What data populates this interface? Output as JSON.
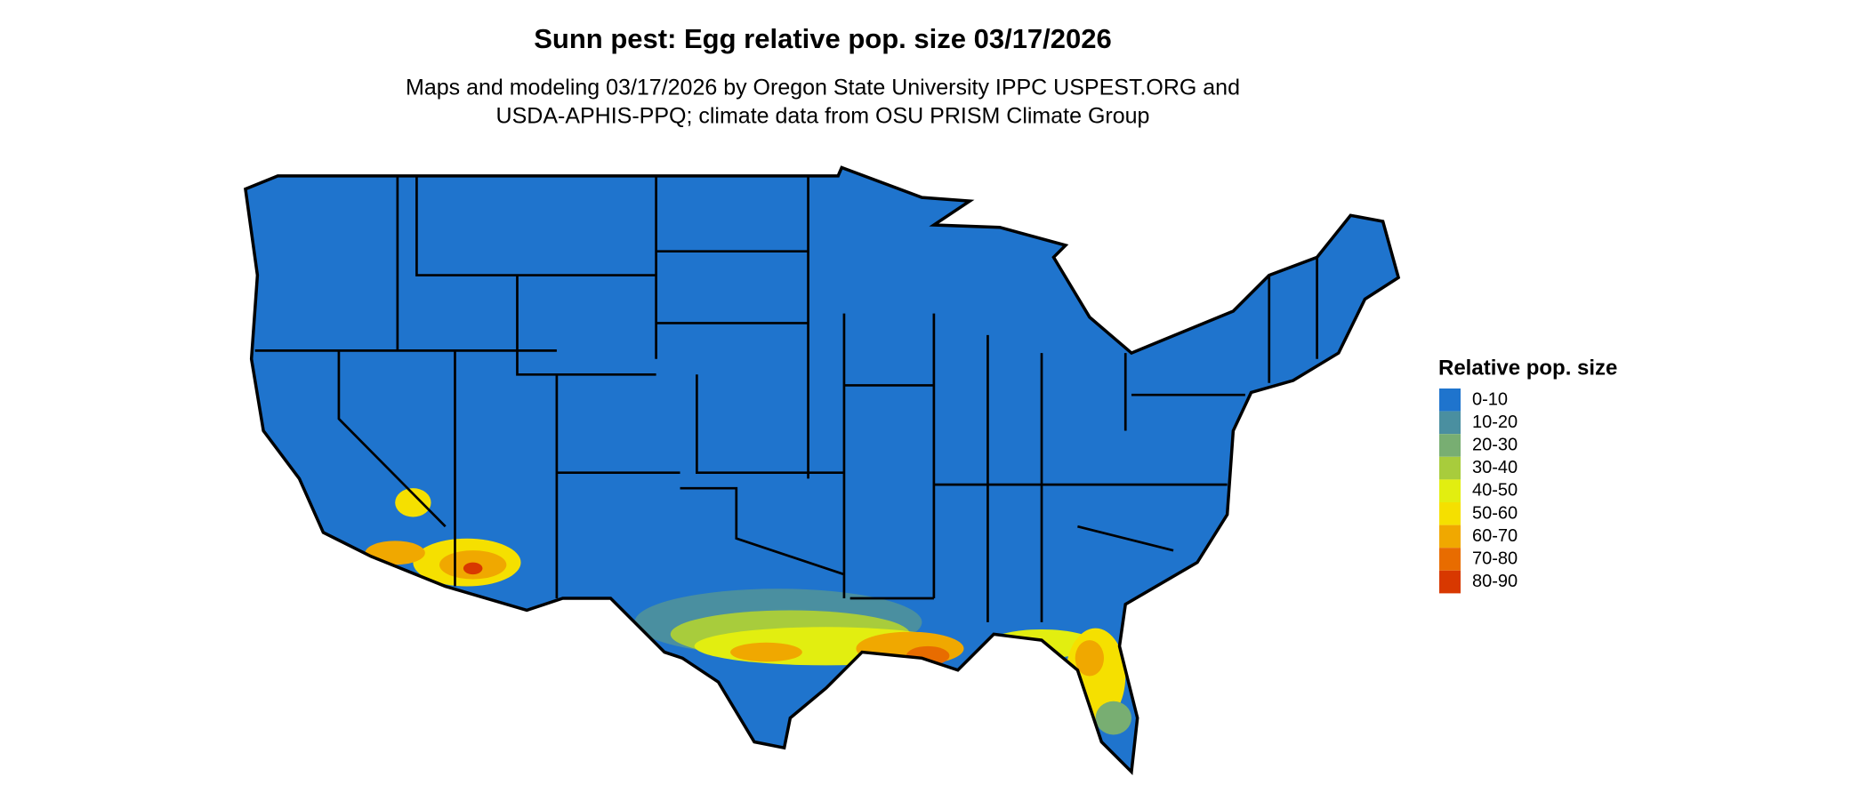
{
  "title": "Sunn pest: Egg relative pop. size 03/17/2026",
  "subtitle": [
    "Maps and modeling 03/17/2026 by Oregon State University IPPC USPEST.ORG and",
    "USDA-APHIS-PPQ; climate data from OSU PRISM Climate Group"
  ],
  "legend": {
    "title": "Relative pop. size",
    "items": [
      {
        "label": "0-10",
        "color": "#1f74cd"
      },
      {
        "label": "10-20",
        "color": "#4a8fa0"
      },
      {
        "label": "20-30",
        "color": "#78ae72"
      },
      {
        "label": "30-40",
        "color": "#a8cc3c"
      },
      {
        "label": "40-50",
        "color": "#e2ee10"
      },
      {
        "label": "50-60",
        "color": "#f5e000"
      },
      {
        "label": "60-70",
        "color": "#f0a800"
      },
      {
        "label": "70-80",
        "color": "#e86c00"
      },
      {
        "label": "80-90",
        "color": "#d83800"
      }
    ]
  }
}
